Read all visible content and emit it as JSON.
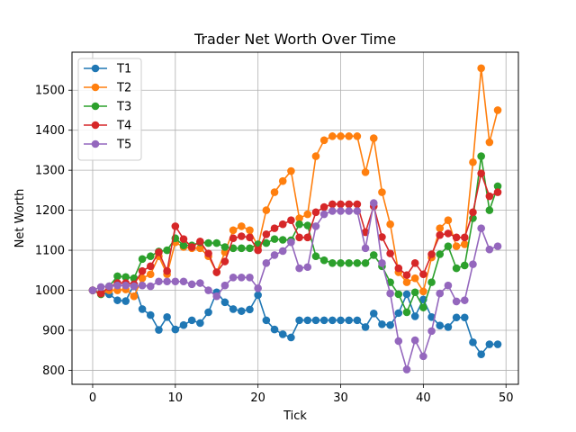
{
  "chart_data": {
    "type": "line",
    "title": "Trader Net Worth Over Time",
    "xlabel": "Tick",
    "ylabel": "Net Worth",
    "xlim": [
      -2.5,
      51.5
    ],
    "ylim": [
      765,
      1595
    ],
    "xticks": [
      0,
      10,
      20,
      30,
      40,
      50
    ],
    "yticks": [
      800,
      900,
      1000,
      1100,
      1200,
      1300,
      1400,
      1500
    ],
    "grid": true,
    "legend": "top-left",
    "x": [
      0,
      1,
      2,
      3,
      4,
      5,
      6,
      7,
      8,
      9,
      10,
      11,
      12,
      13,
      14,
      15,
      16,
      17,
      18,
      19,
      20,
      21,
      22,
      23,
      24,
      25,
      26,
      27,
      28,
      29,
      30,
      31,
      32,
      33,
      34,
      35,
      36,
      37,
      38,
      39,
      40,
      41,
      42,
      43,
      44,
      45,
      46,
      47,
      48,
      49
    ],
    "series": [
      {
        "name": "T1",
        "color": "#1f77b4",
        "values": [
          1000,
          993,
          990,
          975,
          973,
          1015,
          953,
          938,
          901,
          933,
          902,
          913,
          925,
          918,
          945,
          995,
          970,
          953,
          948,
          952,
          988,
          925,
          902,
          890,
          882,
          925,
          925,
          925,
          925,
          925,
          925,
          925,
          925,
          908,
          942,
          915,
          913,
          943,
          990,
          935,
          977,
          933,
          912,
          908,
          932,
          932,
          870,
          840,
          865,
          865
        ]
      },
      {
        "name": "T2",
        "color": "#ff7f0e",
        "values": [
          1000,
          990,
          1000,
          1000,
          1002,
          985,
          1030,
          1040,
          1085,
          1040,
          1120,
          1108,
          1105,
          1105,
          1085,
          1045,
          1095,
          1150,
          1160,
          1150,
          1110,
          1200,
          1245,
          1273,
          1298,
          1180,
          1190,
          1335,
          1375,
          1385,
          1385,
          1385,
          1385,
          1295,
          1380,
          1245,
          1165,
          1045,
          1020,
          1030,
          997,
          1082,
          1155,
          1175,
          1110,
          1115,
          1320,
          1555,
          1370,
          1450
        ]
      },
      {
        "name": "T3",
        "color": "#2ca02c",
        "values": [
          1000,
          990,
          1010,
          1035,
          1033,
          1030,
          1078,
          1085,
          1097,
          1100,
          1130,
          1112,
          1112,
          1120,
          1118,
          1118,
          1108,
          1105,
          1105,
          1105,
          1115,
          1118,
          1128,
          1126,
          1125,
          1165,
          1162,
          1085,
          1075,
          1068,
          1068,
          1068,
          1068,
          1068,
          1088,
          1060,
          1020,
          990,
          945,
          995,
          957,
          1020,
          1090,
          1110,
          1055,
          1062,
          1180,
          1335,
          1200,
          1260
        ]
      },
      {
        "name": "T4",
        "color": "#d62728",
        "values": [
          1000,
          992,
          1008,
          1018,
          1018,
          1015,
          1048,
          1060,
          1095,
          1048,
          1160,
          1128,
          1108,
          1122,
          1092,
          1045,
          1072,
          1130,
          1135,
          1132,
          1100,
          1140,
          1155,
          1165,
          1175,
          1132,
          1132,
          1195,
          1208,
          1215,
          1215,
          1215,
          1215,
          1145,
          1210,
          1133,
          1092,
          1055,
          1038,
          1068,
          1040,
          1090,
          1138,
          1142,
          1132,
          1132,
          1195,
          1292,
          1235,
          1245
        ]
      },
      {
        "name": "T5",
        "color": "#9467bd",
        "values": [
          1000,
          1008,
          1010,
          1012,
          1012,
          1010,
          1012,
          1010,
          1022,
          1022,
          1022,
          1022,
          1015,
          1018,
          1000,
          985,
          1012,
          1032,
          1032,
          1032,
          1005,
          1068,
          1088,
          1098,
          1120,
          1055,
          1058,
          1160,
          1190,
          1198,
          1198,
          1198,
          1198,
          1105,
          1218,
          1068,
          992,
          873,
          802,
          875,
          835,
          898,
          992,
          1012,
          972,
          975,
          1065,
          1155,
          1102,
          1110
        ]
      }
    ]
  }
}
